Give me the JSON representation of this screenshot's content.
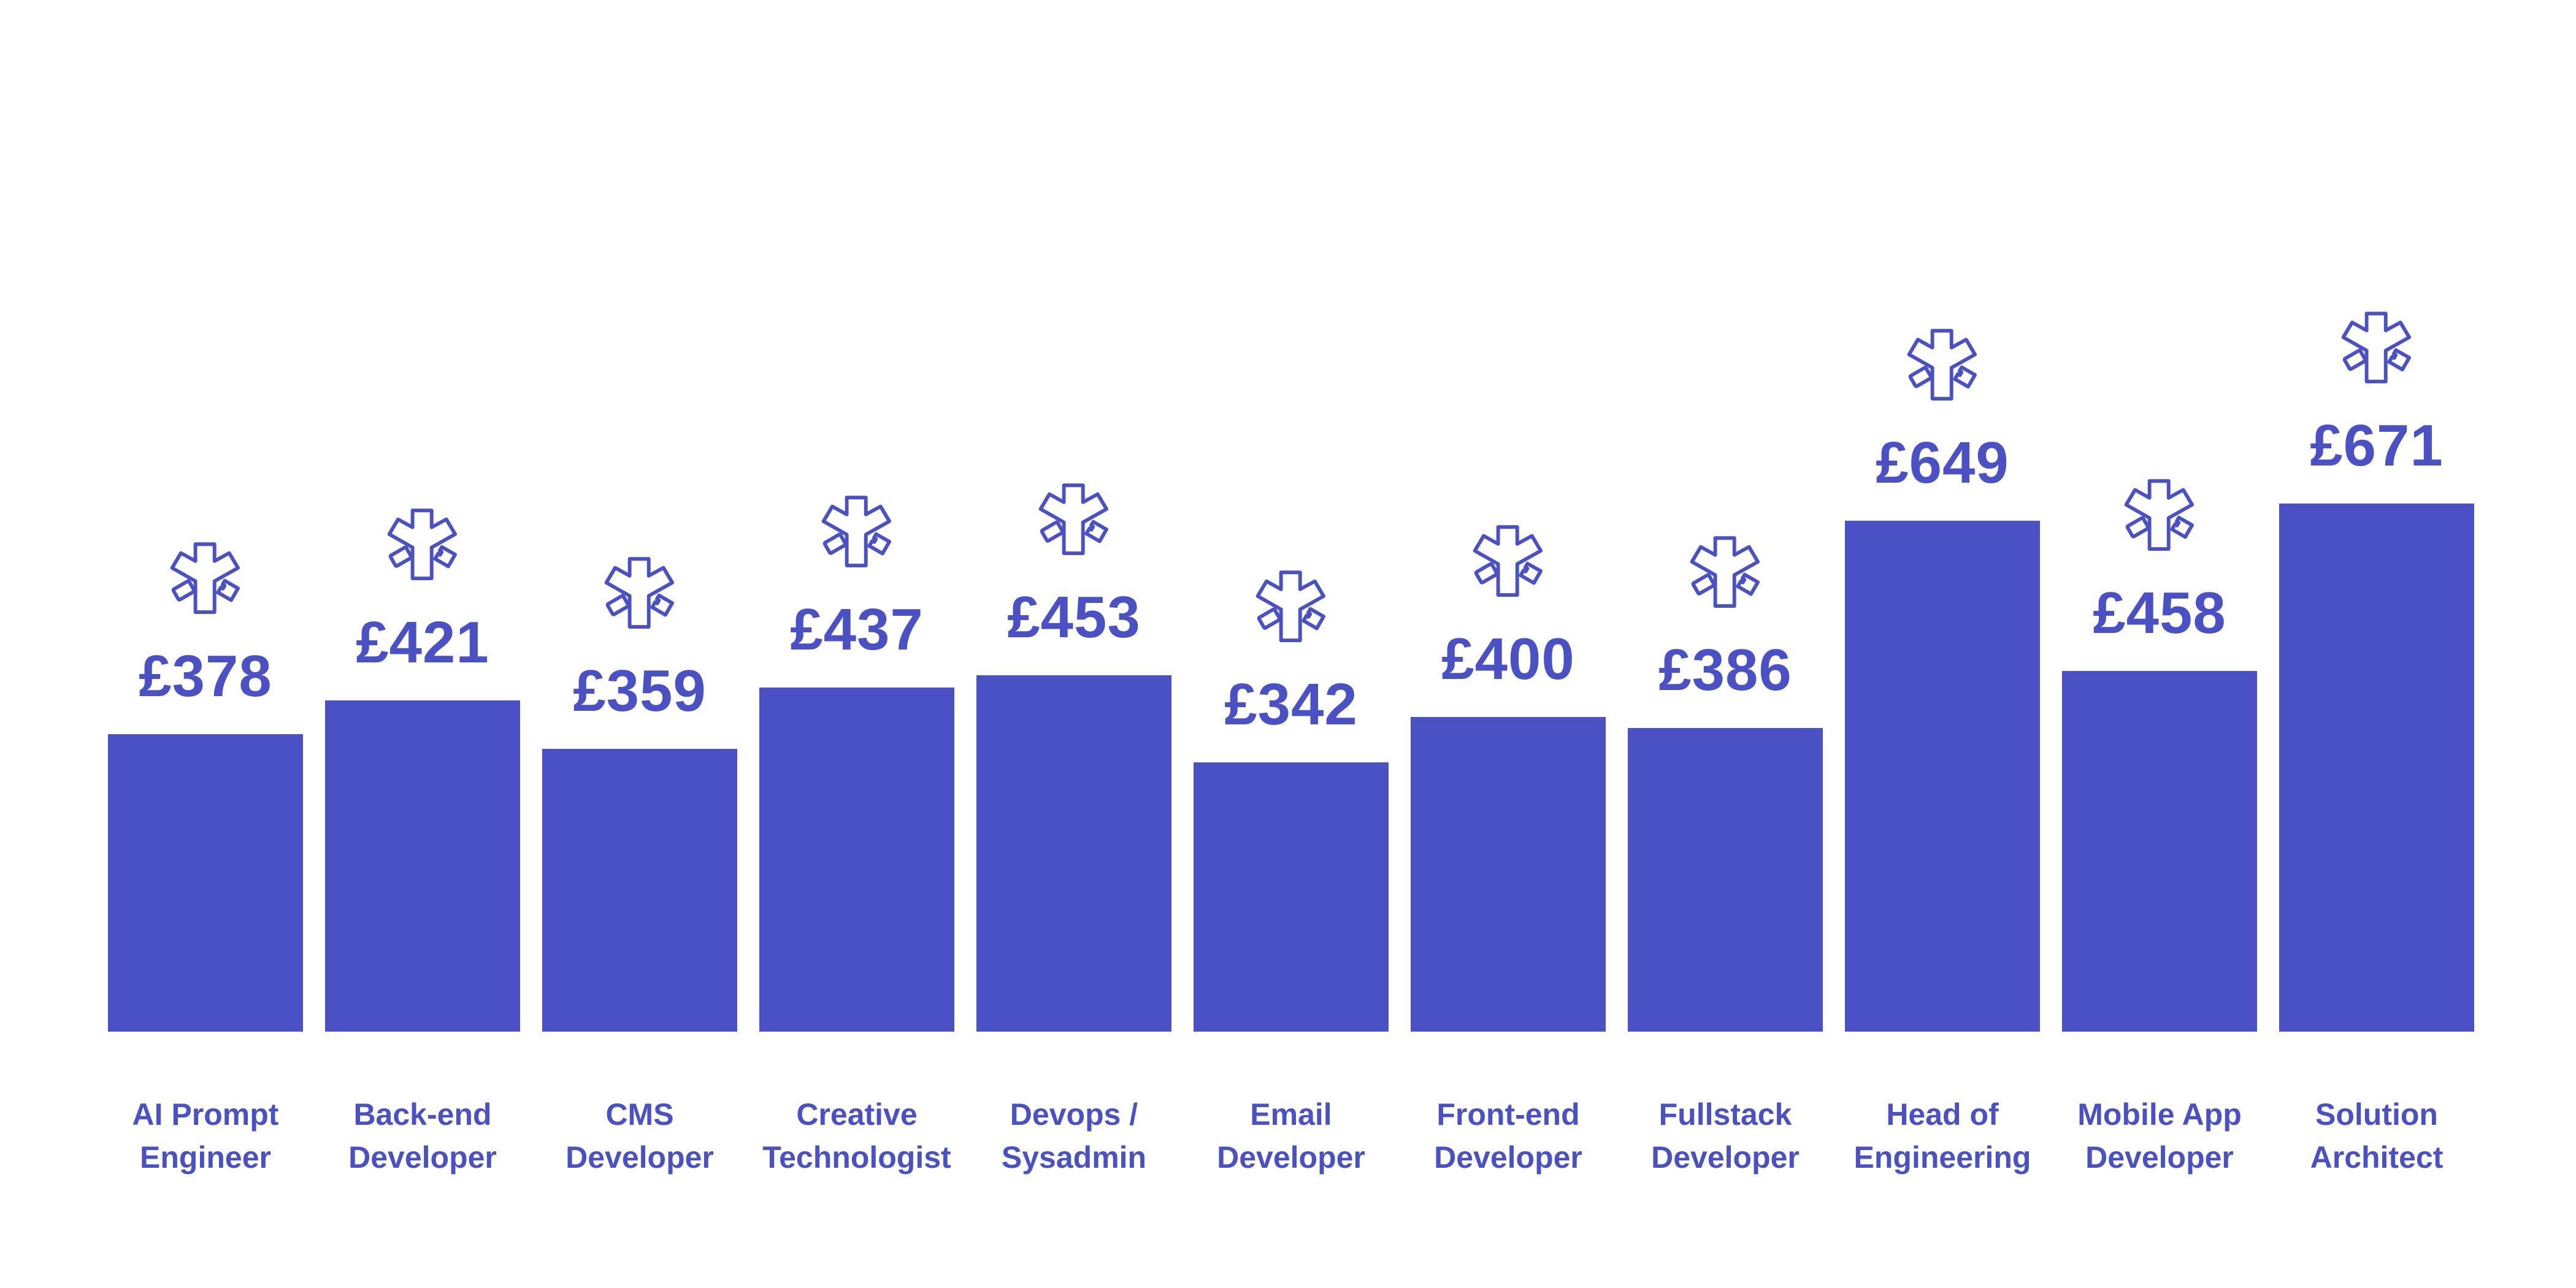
{
  "chart_data": {
    "type": "bar",
    "title": "",
    "xlabel": "",
    "ylabel": "",
    "ylim": [
      0,
      671
    ],
    "grid": false,
    "currency_symbol": "£",
    "bar_color": "#4a51c4",
    "marker_icon": "asterisk-emblem-icon",
    "categories": [
      [
        "AI Prompt",
        "Engineer"
      ],
      [
        "Back-end",
        "Developer"
      ],
      [
        "CMS",
        "Developer"
      ],
      [
        "Creative",
        "Technologist"
      ],
      [
        "Devops /",
        "Sysadmin"
      ],
      [
        "Email",
        "Developer"
      ],
      [
        "Front-end",
        "Developer"
      ],
      [
        "Fullstack",
        "Developer"
      ],
      [
        "Head of",
        "Engineering"
      ],
      [
        "Mobile App",
        "Developer"
      ],
      [
        "Solution",
        "Architect"
      ]
    ],
    "values": [
      378,
      421,
      359,
      437,
      453,
      342,
      400,
      386,
      649,
      458,
      671
    ],
    "labels": [
      "£378",
      "£421",
      "£359",
      "£437",
      "£453",
      "£342",
      "£400",
      "£386",
      "£649",
      "£458",
      "£671"
    ]
  }
}
